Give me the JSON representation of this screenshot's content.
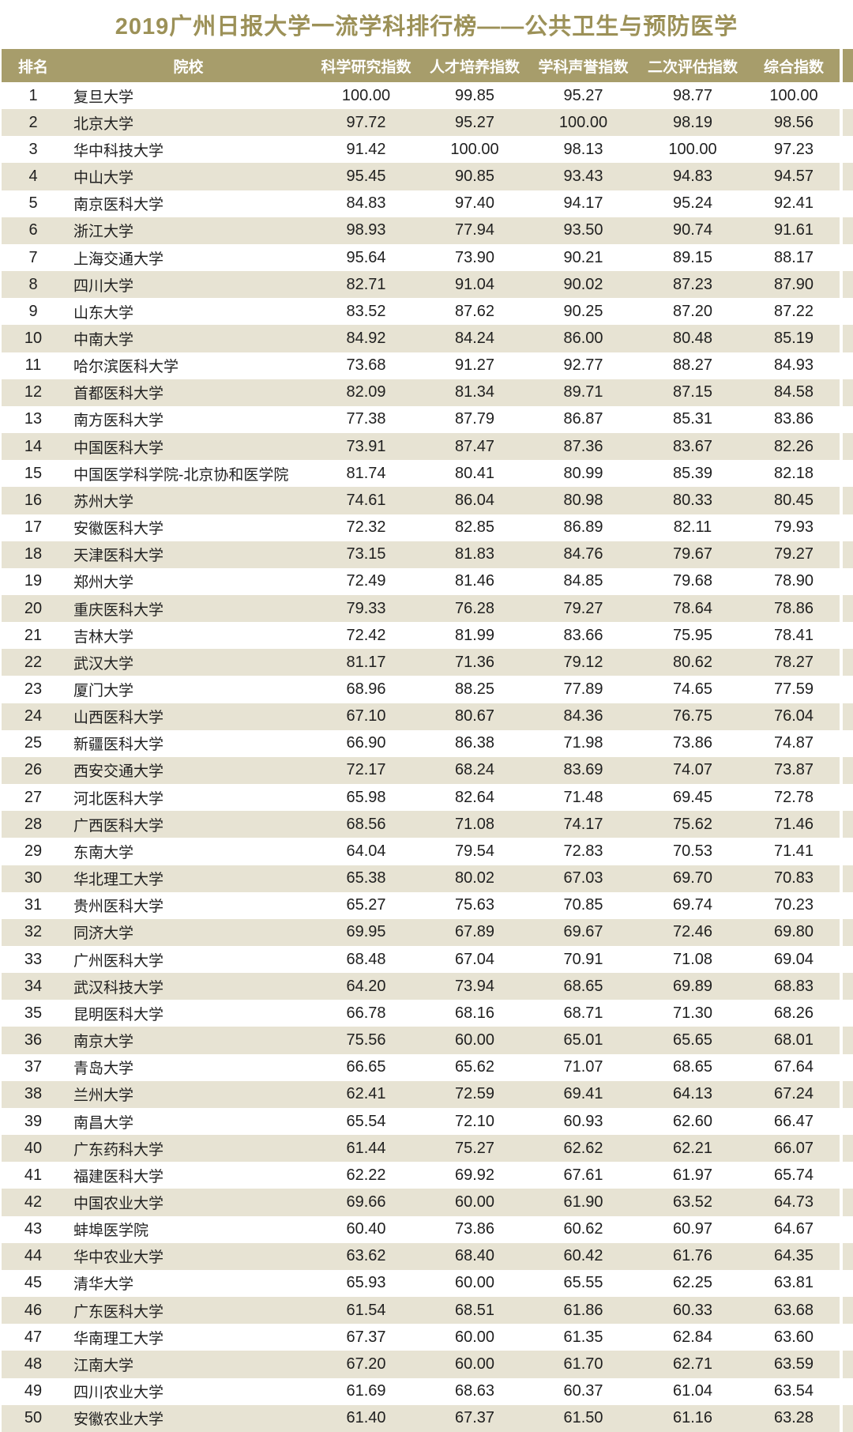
{
  "title": "2019广州日报大学一流学科排行榜——公共卫生与预防医学",
  "colors": {
    "title_color": "#9c9158",
    "header_bg": "#a79d6b",
    "stripe_bg": "#e7e3d3",
    "row_bg": "#ffffff",
    "header_text": "#ffffff",
    "body_text": "#1f1f1f"
  },
  "chart_data": {
    "type": "table",
    "title": "2019广州日报大学一流学科排行榜——公共卫生与预防医学",
    "columns": [
      "排名",
      "院校",
      "科学研究指数",
      "人才培养指数",
      "学科声誉指数",
      "二次评估指数",
      "综合指数"
    ],
    "rows": [
      [
        "1",
        "复旦大学",
        "100.00",
        "99.85",
        "95.27",
        "98.77",
        "100.00"
      ],
      [
        "2",
        "北京大学",
        "97.72",
        "95.27",
        "100.00",
        "98.19",
        "98.56"
      ],
      [
        "3",
        "华中科技大学",
        "91.42",
        "100.00",
        "98.13",
        "100.00",
        "97.23"
      ],
      [
        "4",
        "中山大学",
        "95.45",
        "90.85",
        "93.43",
        "94.83",
        "94.57"
      ],
      [
        "5",
        "南京医科大学",
        "84.83",
        "97.40",
        "94.17",
        "95.24",
        "92.41"
      ],
      [
        "6",
        "浙江大学",
        "98.93",
        "77.94",
        "93.50",
        "90.74",
        "91.61"
      ],
      [
        "7",
        "上海交通大学",
        "95.64",
        "73.90",
        "90.21",
        "89.15",
        "88.17"
      ],
      [
        "8",
        "四川大学",
        "82.71",
        "91.04",
        "90.02",
        "87.23",
        "87.90"
      ],
      [
        "9",
        "山东大学",
        "83.52",
        "87.62",
        "90.25",
        "87.20",
        "87.22"
      ],
      [
        "10",
        "中南大学",
        "84.92",
        "84.24",
        "86.00",
        "80.48",
        "85.19"
      ],
      [
        "11",
        "哈尔滨医科大学",
        "73.68",
        "91.27",
        "92.77",
        "88.27",
        "84.93"
      ],
      [
        "12",
        "首都医科大学",
        "82.09",
        "81.34",
        "89.71",
        "87.15",
        "84.58"
      ],
      [
        "13",
        "南方医科大学",
        "77.38",
        "87.79",
        "86.87",
        "85.31",
        "83.86"
      ],
      [
        "14",
        "中国医科大学",
        "73.91",
        "87.47",
        "87.36",
        "83.67",
        "82.26"
      ],
      [
        "15",
        "中国医学科学院-北京协和医学院",
        "81.74",
        "80.41",
        "80.99",
        "85.39",
        "82.18"
      ],
      [
        "16",
        "苏州大学",
        "74.61",
        "86.04",
        "80.98",
        "80.33",
        "80.45"
      ],
      [
        "17",
        "安徽医科大学",
        "72.32",
        "82.85",
        "86.89",
        "82.11",
        "79.93"
      ],
      [
        "18",
        "天津医科大学",
        "73.15",
        "81.83",
        "84.76",
        "79.67",
        "79.27"
      ],
      [
        "19",
        "郑州大学",
        "72.49",
        "81.46",
        "84.85",
        "79.68",
        "78.90"
      ],
      [
        "20",
        "重庆医科大学",
        "79.33",
        "76.28",
        "79.27",
        "78.64",
        "78.86"
      ],
      [
        "21",
        "吉林大学",
        "72.42",
        "81.99",
        "83.66",
        "75.95",
        "78.41"
      ],
      [
        "22",
        "武汉大学",
        "81.17",
        "71.36",
        "79.12",
        "80.62",
        "78.27"
      ],
      [
        "23",
        "厦门大学",
        "68.96",
        "88.25",
        "77.89",
        "74.65",
        "77.59"
      ],
      [
        "24",
        "山西医科大学",
        "67.10",
        "80.67",
        "84.36",
        "76.75",
        "76.04"
      ],
      [
        "25",
        "新疆医科大学",
        "66.90",
        "86.38",
        "71.98",
        "73.86",
        "74.87"
      ],
      [
        "26",
        "西安交通大学",
        "72.17",
        "68.24",
        "83.69",
        "74.07",
        "73.87"
      ],
      [
        "27",
        "河北医科大学",
        "65.98",
        "82.64",
        "71.48",
        "69.45",
        "72.78"
      ],
      [
        "28",
        "广西医科大学",
        "68.56",
        "71.08",
        "74.17",
        "75.62",
        "71.46"
      ],
      [
        "29",
        "东南大学",
        "64.04",
        "79.54",
        "72.83",
        "70.53",
        "71.41"
      ],
      [
        "30",
        "华北理工大学",
        "65.38",
        "80.02",
        "67.03",
        "69.70",
        "70.83"
      ],
      [
        "31",
        "贵州医科大学",
        "65.27",
        "75.63",
        "70.85",
        "69.74",
        "70.23"
      ],
      [
        "32",
        "同济大学",
        "69.95",
        "67.89",
        "69.67",
        "72.46",
        "69.80"
      ],
      [
        "33",
        "广州医科大学",
        "68.48",
        "67.04",
        "70.91",
        "71.08",
        "69.04"
      ],
      [
        "34",
        "武汉科技大学",
        "64.20",
        "73.94",
        "68.65",
        "69.89",
        "68.83"
      ],
      [
        "35",
        "昆明医科大学",
        "66.78",
        "68.16",
        "68.71",
        "71.30",
        "68.26"
      ],
      [
        "36",
        "南京大学",
        "75.56",
        "60.00",
        "65.01",
        "65.65",
        "68.01"
      ],
      [
        "37",
        "青岛大学",
        "66.65",
        "65.62",
        "71.07",
        "68.65",
        "67.64"
      ],
      [
        "38",
        "兰州大学",
        "62.41",
        "72.59",
        "69.41",
        "64.13",
        "67.24"
      ],
      [
        "39",
        "南昌大学",
        "65.54",
        "72.10",
        "60.93",
        "62.60",
        "66.47"
      ],
      [
        "40",
        "广东药科大学",
        "61.44",
        "75.27",
        "62.62",
        "62.21",
        "66.07"
      ],
      [
        "41",
        "福建医科大学",
        "62.22",
        "69.92",
        "67.61",
        "61.97",
        "65.74"
      ],
      [
        "42",
        "中国农业大学",
        "69.66",
        "60.00",
        "61.90",
        "63.52",
        "64.73"
      ],
      [
        "43",
        "蚌埠医学院",
        "60.40",
        "73.86",
        "60.62",
        "60.97",
        "64.67"
      ],
      [
        "44",
        "华中农业大学",
        "63.62",
        "68.40",
        "60.42",
        "61.76",
        "64.35"
      ],
      [
        "45",
        "清华大学",
        "65.93",
        "60.00",
        "65.55",
        "62.25",
        "63.81"
      ],
      [
        "46",
        "广东医科大学",
        "61.54",
        "68.51",
        "61.86",
        "60.33",
        "63.68"
      ],
      [
        "47",
        "华南理工大学",
        "67.37",
        "60.00",
        "61.35",
        "62.84",
        "63.60"
      ],
      [
        "48",
        "江南大学",
        "67.20",
        "60.00",
        "61.70",
        "62.71",
        "63.59"
      ],
      [
        "49",
        "四川农业大学",
        "61.69",
        "68.63",
        "60.37",
        "61.04",
        "63.54"
      ],
      [
        "50",
        "安徽农业大学",
        "61.40",
        "67.37",
        "61.50",
        "61.16",
        "63.28"
      ]
    ]
  }
}
